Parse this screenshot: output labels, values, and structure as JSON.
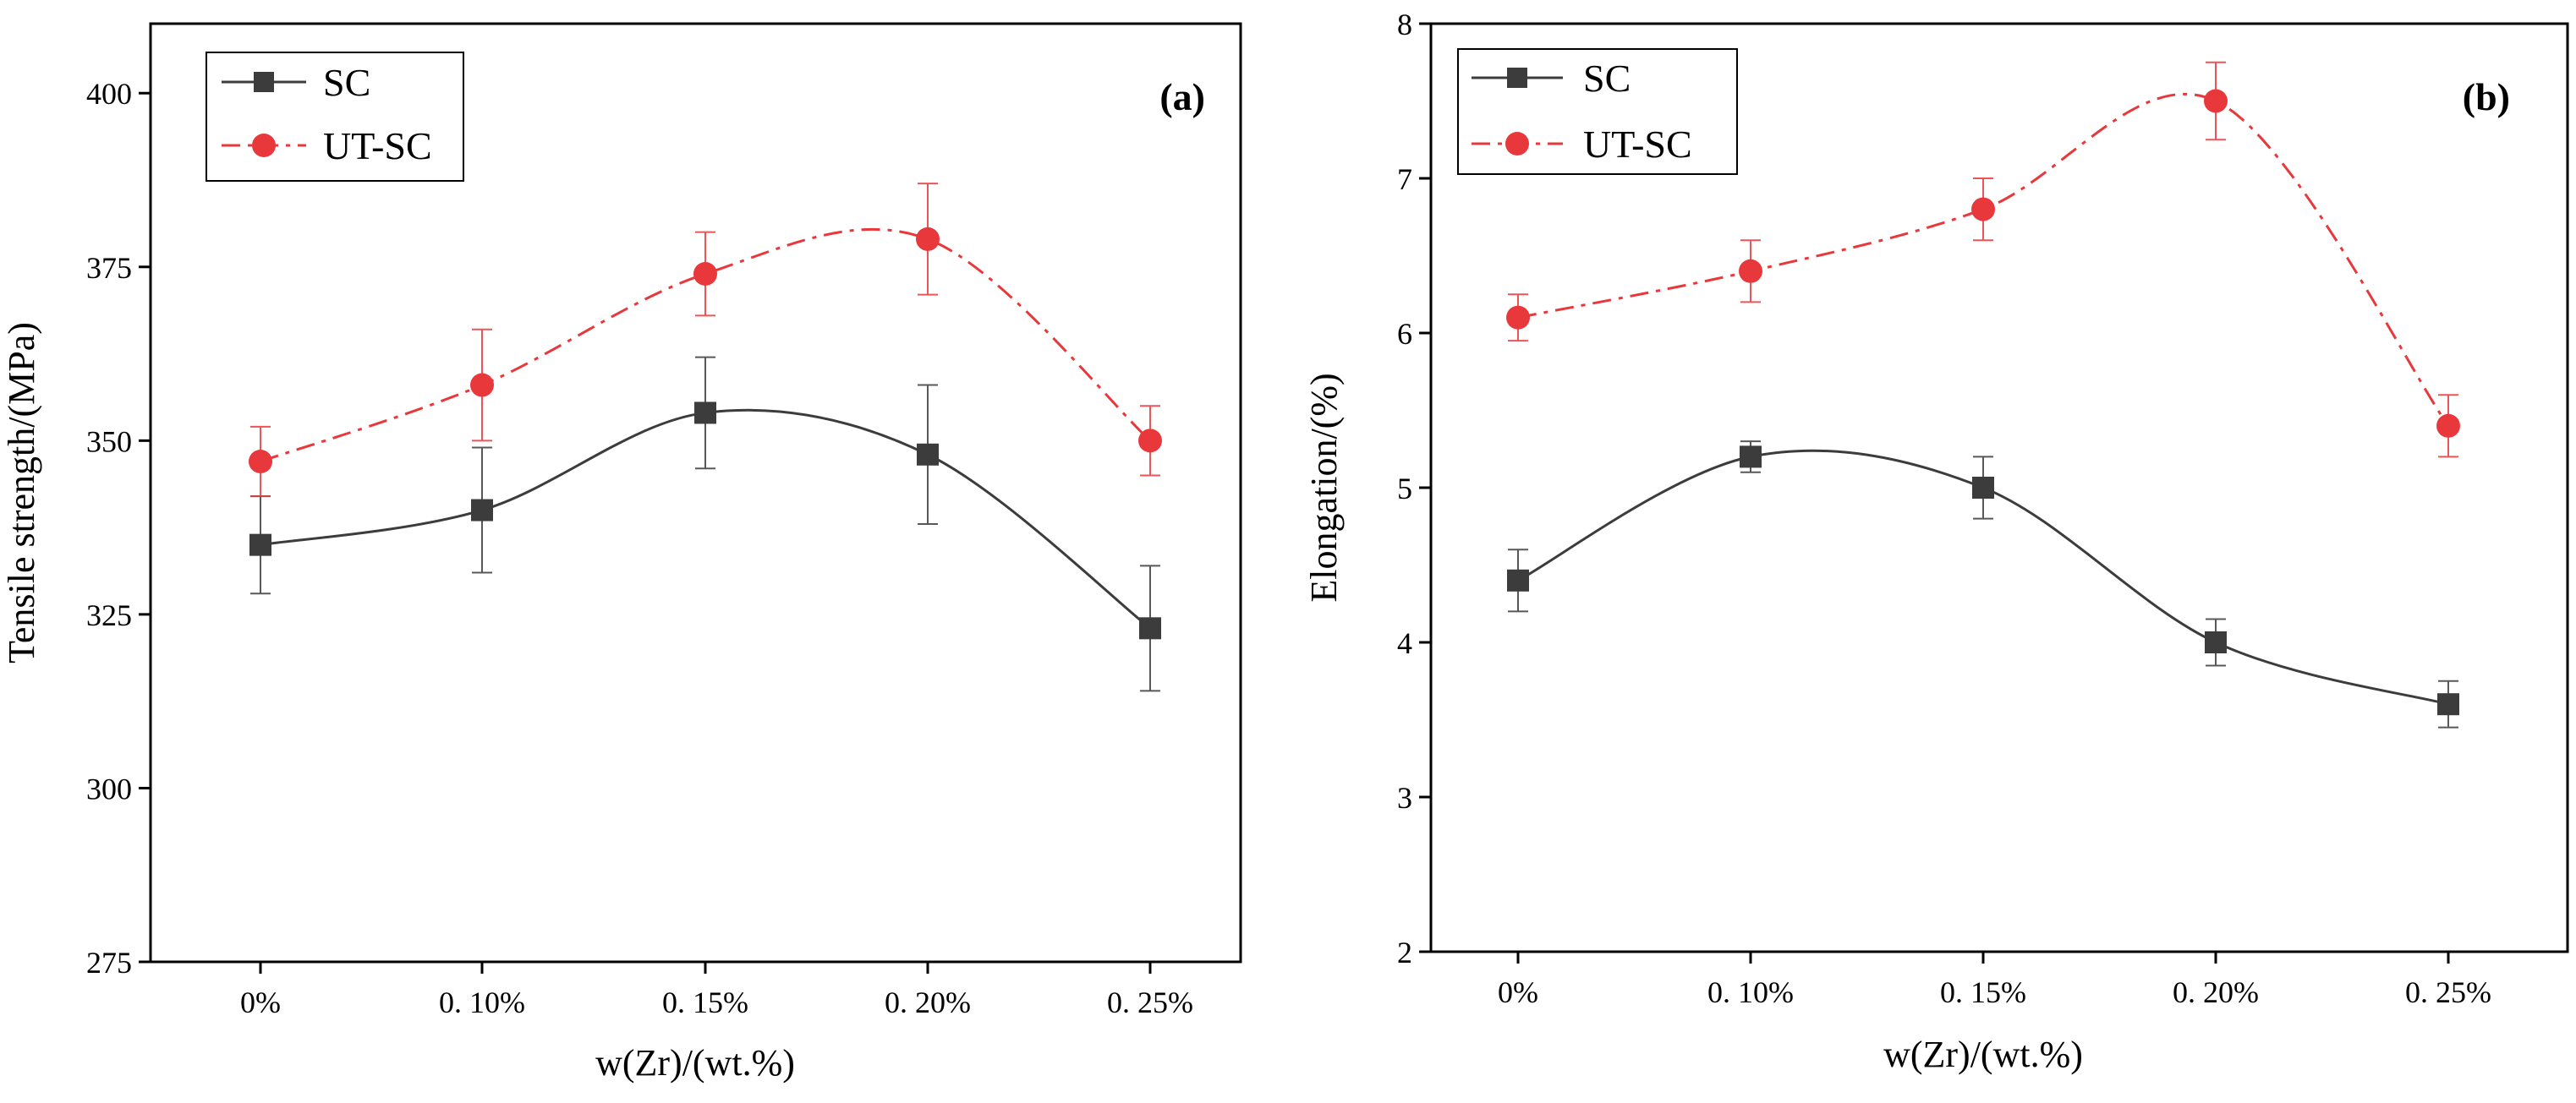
{
  "colors": {
    "sc": "#3c3c3c",
    "utsc": "#e8383c",
    "axis": "#000000",
    "background": "#ffffff"
  },
  "chart_data": [
    {
      "id": "a",
      "type": "line",
      "panel_label": "(a)",
      "title": "",
      "xlabel": "w(Zr)/(wt.%)",
      "ylabel": "Tensile strength/(MPa)",
      "categories": [
        "0%",
        "0. 10%",
        "0. 15%",
        "0. 20%",
        "0. 25%"
      ],
      "ylim": [
        275,
        410
      ],
      "yticks": [
        275,
        300,
        325,
        350,
        375,
        400
      ],
      "yticklabels": [
        "275",
        "300",
        "325",
        "350",
        "375",
        "400"
      ],
      "legend_position": "top-left",
      "grid": false,
      "series": [
        {
          "name": "SC",
          "key": "sc",
          "marker": "square",
          "line": "solid",
          "values": [
            335,
            340,
            354,
            348,
            323
          ],
          "errors": [
            7,
            9,
            8,
            10,
            9
          ]
        },
        {
          "name": "UT-SC",
          "key": "utsc",
          "marker": "circle",
          "line": "dash-dot",
          "values": [
            347,
            358,
            374,
            379,
            350
          ],
          "errors": [
            5,
            8,
            6,
            8,
            5
          ]
        }
      ]
    },
    {
      "id": "b",
      "type": "line",
      "panel_label": "(b)",
      "title": "",
      "xlabel": "w(Zr)/(wt.%)",
      "ylabel": "Elongation/(%)",
      "categories": [
        "0%",
        "0. 10%",
        "0. 15%",
        "0. 20%",
        "0. 25%"
      ],
      "ylim": [
        2,
        8
      ],
      "yticks": [
        2,
        3,
        4,
        5,
        6,
        7,
        8
      ],
      "yticklabels": [
        "2",
        "3",
        "4",
        "5",
        "6",
        "7",
        "8"
      ],
      "legend_position": "top-left",
      "grid": false,
      "series": [
        {
          "name": "SC",
          "key": "sc",
          "marker": "square",
          "line": "solid",
          "values": [
            4.4,
            5.2,
            5.0,
            4.0,
            3.6
          ],
          "errors": [
            0.2,
            0.1,
            0.2,
            0.15,
            0.15
          ]
        },
        {
          "name": "UT-SC",
          "key": "utsc",
          "marker": "circle",
          "line": "dash-dot",
          "values": [
            6.1,
            6.4,
            6.8,
            7.5,
            5.4
          ],
          "errors": [
            0.15,
            0.2,
            0.2,
            0.25,
            0.2
          ]
        }
      ]
    }
  ]
}
